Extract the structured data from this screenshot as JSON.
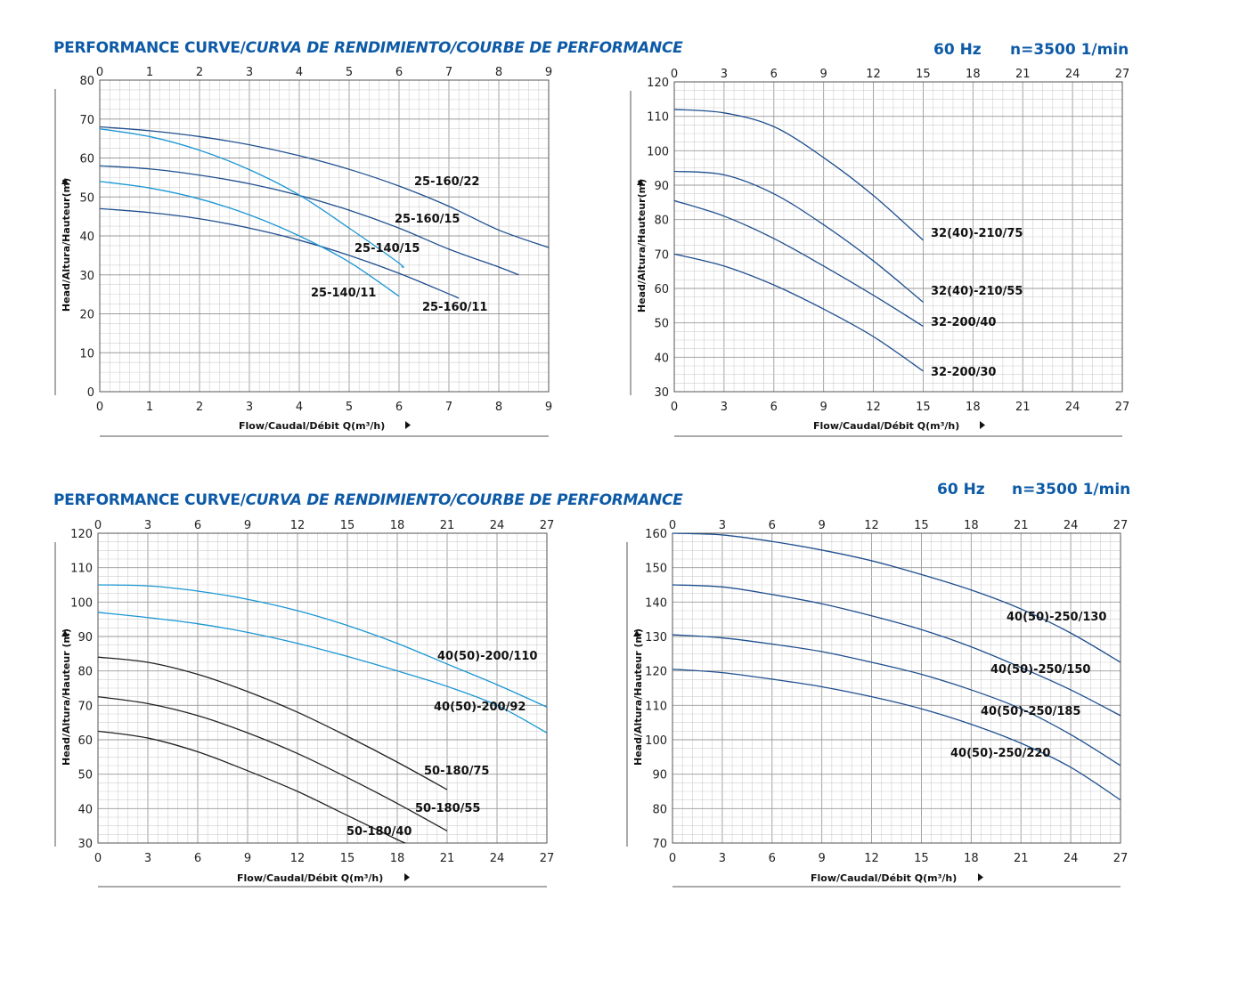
{
  "header_top": {
    "title_normal": "PERFORMANCE CURVE/",
    "title_italic": "CURVA DE RENDIMIENTO/COURBE DE PERFORMANCE",
    "hz": "60 Hz",
    "speed": "n=3500 1/min"
  },
  "header_bottom": {
    "title_normal": "PERFORMANCE CURVE/",
    "title_italic": "CURVA DE RENDIMIENTO/COURBE DE PERFORMANCE",
    "hz": "60 Hz",
    "speed": "n=3500 1/min"
  },
  "colors": {
    "dark_blue": "#1f4f8f",
    "light_blue": "#1a96d4",
    "black": "#222222",
    "grid": "#bfbfbf",
    "header": "#0d5aa7"
  },
  "chart_data": [
    {
      "type": "line",
      "xlabel": "Flow/Caudal/Débit Q(m³/h)",
      "ylabel": "Head/Altura/Hauteur(m)",
      "xlim": [
        0,
        9
      ],
      "ylim": [
        0,
        80
      ],
      "xticks": [
        0,
        1,
        2,
        3,
        4,
        5,
        6,
        7,
        8,
        9
      ],
      "yticks": [
        0,
        10,
        20,
        30,
        40,
        50,
        60,
        70,
        80
      ],
      "grid": true,
      "series": [
        {
          "name": "25-160/22",
          "color": "dark_blue",
          "x": [
            0,
            1,
            2,
            3,
            4,
            5,
            6,
            7,
            8,
            9
          ],
          "y": [
            68,
            67,
            65.5,
            63.4,
            60.6,
            57.1,
            52.8,
            47.6,
            41.5,
            37
          ]
        },
        {
          "name": "25-160/15",
          "color": "dark_blue",
          "x": [
            0,
            1,
            2,
            3,
            4,
            5,
            6,
            7,
            8,
            8.4
          ],
          "y": [
            58,
            57.2,
            55.6,
            53.4,
            50.4,
            46.6,
            42,
            36.6,
            32,
            30
          ]
        },
        {
          "name": "25-160/11",
          "color": "dark_blue",
          "x": [
            0,
            1,
            2,
            3,
            4,
            5,
            6,
            7,
            7.2
          ],
          "y": [
            47,
            46,
            44.4,
            42,
            38.9,
            35,
            30.4,
            25.1,
            24
          ]
        },
        {
          "name": "25-140/15",
          "color": "light_blue",
          "x": [
            0,
            1,
            2,
            3,
            4,
            5,
            6,
            6.05
          ],
          "y": [
            67.5,
            65.5,
            62,
            57,
            50.5,
            42,
            33,
            32
          ]
        },
        {
          "name": "25-140/11",
          "color": "light_blue",
          "x": [
            0,
            1,
            2,
            3,
            4,
            5,
            6
          ],
          "y": [
            54,
            52.3,
            49.5,
            45.4,
            40,
            33.3,
            24.5
          ]
        }
      ]
    },
    {
      "type": "line",
      "xlabel": "Flow/Caudal/Débit Q(m³/h)",
      "ylabel": "Head/Altura/Hauteur(m)",
      "xlim": [
        0,
        27
      ],
      "ylim": [
        30,
        120
      ],
      "xticks": [
        0,
        3,
        6,
        9,
        12,
        15,
        18,
        21,
        24,
        27
      ],
      "yticks": [
        30,
        40,
        50,
        60,
        70,
        80,
        90,
        100,
        110,
        120
      ],
      "grid": true,
      "series": [
        {
          "name": "32(40)-210/75",
          "color": "dark_blue",
          "x": [
            0,
            3,
            6,
            9,
            12,
            15
          ],
          "y": [
            112,
            111,
            107,
            98,
            87,
            74
          ]
        },
        {
          "name": "32(40)-210/55",
          "color": "dark_blue",
          "x": [
            0,
            3,
            6,
            9,
            12,
            15
          ],
          "y": [
            94,
            93,
            87.5,
            78.5,
            68,
            56
          ]
        },
        {
          "name": "32-200/40",
          "color": "dark_blue",
          "x": [
            0,
            3,
            6,
            9,
            12,
            15
          ],
          "y": [
            85.5,
            81,
            74.5,
            66.5,
            58,
            49
          ]
        },
        {
          "name": "32-200/30",
          "color": "dark_blue",
          "x": [
            0,
            3,
            6,
            9,
            12,
            15
          ],
          "y": [
            70,
            66.5,
            61,
            54,
            46,
            36
          ]
        }
      ]
    },
    {
      "type": "line",
      "xlabel": "Flow/Caudal/Débit Q(m³/h)",
      "ylabel": "Head/Altura/Hauteur (m)",
      "xlim": [
        0,
        27
      ],
      "ylim": [
        30,
        120
      ],
      "xticks": [
        0,
        3,
        6,
        9,
        12,
        15,
        18,
        21,
        24,
        27
      ],
      "yticks": [
        30,
        40,
        50,
        60,
        70,
        80,
        90,
        100,
        110,
        120
      ],
      "grid": true,
      "series": [
        {
          "name": "40(50)-200/110",
          "color": "light_blue",
          "x": [
            0,
            3,
            6,
            9,
            12,
            15,
            18,
            21,
            24,
            27
          ],
          "y": [
            105,
            104.7,
            103.2,
            100.8,
            97.5,
            93.2,
            88,
            82,
            76,
            69.5
          ]
        },
        {
          "name": "40(50)-200/92",
          "color": "light_blue",
          "x": [
            0,
            3,
            6,
            9,
            12,
            15,
            18,
            21,
            24,
            27
          ],
          "y": [
            97,
            95.5,
            93.7,
            91.2,
            88,
            84.2,
            80,
            75.5,
            70,
            62
          ]
        },
        {
          "name": "50-180/75",
          "color": "black",
          "x": [
            0,
            3,
            6,
            9,
            12,
            15,
            18,
            21
          ],
          "y": [
            84,
            82.5,
            79,
            74,
            68,
            61,
            53.5,
            45.5
          ]
        },
        {
          "name": "50-180/55",
          "color": "black",
          "x": [
            0,
            3,
            6,
            9,
            12,
            15,
            18,
            21
          ],
          "y": [
            72.5,
            70.5,
            67,
            62,
            56,
            49,
            41.5,
            33.5
          ]
        },
        {
          "name": "50-180/40",
          "color": "black",
          "x": [
            0,
            3,
            6,
            9,
            12,
            15,
            18,
            18.5
          ],
          "y": [
            62.5,
            60.5,
            56.5,
            51,
            45,
            38,
            31,
            30
          ]
        }
      ]
    },
    {
      "type": "line",
      "xlabel": "Flow/Caudal/Débit Q(m³/h)",
      "ylabel": "Head/Altura/Hauteur (m)",
      "xlim": [
        0,
        27
      ],
      "ylim": [
        70,
        160
      ],
      "xticks": [
        0,
        3,
        6,
        9,
        12,
        15,
        18,
        21,
        24,
        27
      ],
      "yticks": [
        70,
        80,
        90,
        100,
        110,
        120,
        130,
        140,
        150,
        160
      ],
      "grid": true,
      "series": [
        {
          "name": "40(50)-250/130",
          "color": "dark_blue",
          "x": [
            0,
            3,
            6,
            9,
            12,
            15,
            18,
            21,
            24,
            27
          ],
          "y": [
            160,
            159.5,
            157.6,
            155.1,
            152,
            148,
            143.5,
            138,
            131,
            122.5
          ]
        },
        {
          "name": "40(50)-250/150",
          "color": "dark_blue",
          "x": [
            0,
            3,
            6,
            9,
            12,
            15,
            18,
            21,
            24,
            27
          ],
          "y": [
            145,
            144.4,
            142.2,
            139.5,
            136,
            132,
            127,
            121,
            114.5,
            107
          ]
        },
        {
          "name": "40(50)-250/185",
          "color": "dark_blue",
          "x": [
            0,
            3,
            6,
            9,
            12,
            15,
            18,
            21,
            24,
            27
          ],
          "y": [
            130.5,
            129.6,
            127.8,
            125.6,
            122.5,
            119,
            114.5,
            109,
            101.5,
            92.5
          ]
        },
        {
          "name": "40(50)-250/220",
          "color": "dark_blue",
          "x": [
            0,
            3,
            6,
            9,
            12,
            15,
            18,
            21,
            24,
            27
          ],
          "y": [
            120.5,
            119.5,
            117.6,
            115.4,
            112.5,
            109,
            104.5,
            99,
            92,
            82.5
          ]
        }
      ]
    }
  ]
}
